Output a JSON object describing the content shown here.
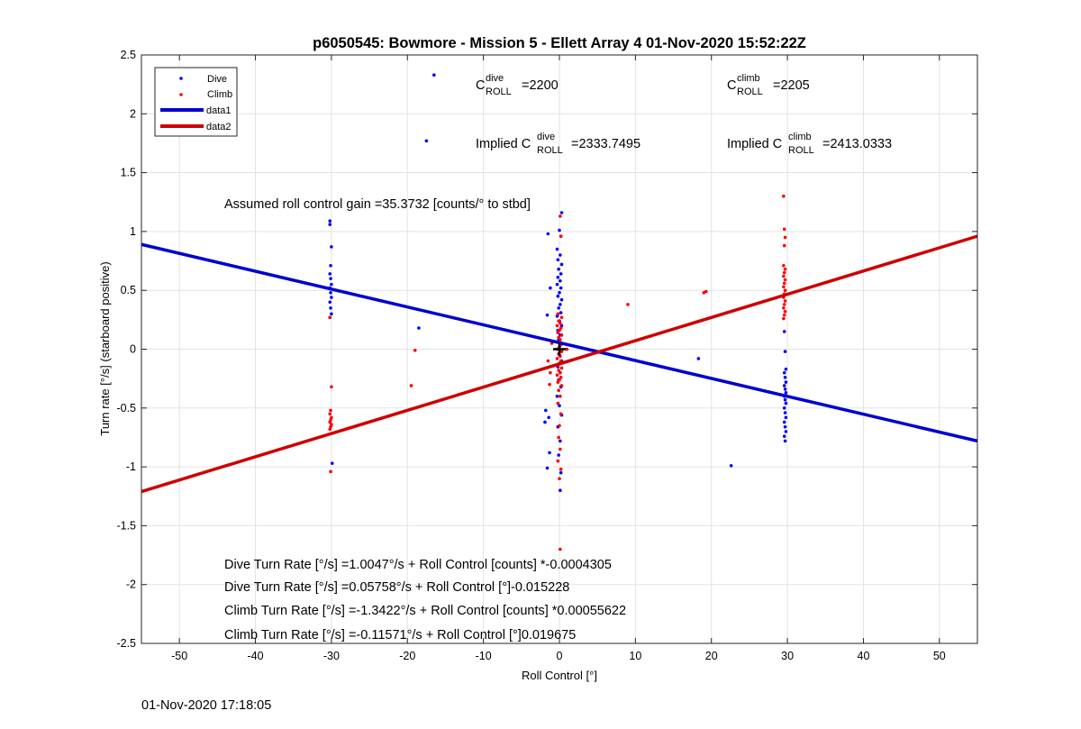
{
  "chart_data": {
    "type": "scatter",
    "title": "p6050545: Bowmore - Mission 5 - Ellett Array 4 01-Nov-2020 15:52:22Z",
    "xlabel": "Roll Control [°]",
    "ylabel": "Turn rate [°/s] (starboard positive)",
    "xlim": [
      -55,
      55
    ],
    "ylim": [
      -2.5,
      2.5
    ],
    "xticks": [
      -50,
      -40,
      -30,
      -20,
      -10,
      0,
      10,
      20,
      30,
      40,
      50
    ],
    "yticks": [
      -2.5,
      -2,
      -1.5,
      -1,
      -0.5,
      0,
      0.5,
      1,
      1.5,
      2,
      2.5
    ],
    "grid": true,
    "legend_position": "top-left",
    "colors": {
      "dive": "#0000ff",
      "climb": "#ff0000",
      "data1": "#0000cd",
      "data2": "#cd0000",
      "marker": "#000000"
    },
    "series": [
      {
        "name": "Dive",
        "kind": "points",
        "points": [
          [
            -16.5,
            2.33
          ],
          [
            -17.5,
            1.77
          ],
          [
            -18.5,
            0.18
          ],
          [
            18.3,
            -0.08
          ],
          [
            22.6,
            -0.99
          ],
          [
            -30.2,
            1.09
          ],
          [
            -30.2,
            1.06
          ],
          [
            -30.0,
            0.87
          ],
          [
            -30.1,
            0.71
          ],
          [
            -30.2,
            0.64
          ],
          [
            -30.1,
            0.6
          ],
          [
            -30.0,
            0.55
          ],
          [
            -30.2,
            0.52
          ],
          [
            -30.1,
            0.48
          ],
          [
            -30.0,
            0.44
          ],
          [
            -30.2,
            0.4
          ],
          [
            -30.1,
            0.35
          ],
          [
            -30.0,
            0.3
          ],
          [
            -30.2,
            0.27
          ],
          [
            -29.9,
            -0.97
          ],
          [
            29.6,
            0.15
          ],
          [
            29.7,
            -0.02
          ],
          [
            29.8,
            -0.17
          ],
          [
            29.6,
            -0.2
          ],
          [
            29.7,
            -0.24
          ],
          [
            29.8,
            -0.28
          ],
          [
            29.6,
            -0.31
          ],
          [
            29.7,
            -0.34
          ],
          [
            29.8,
            -0.37
          ],
          [
            29.6,
            -0.4
          ],
          [
            29.7,
            -0.43
          ],
          [
            29.8,
            -0.46
          ],
          [
            29.6,
            -0.5
          ],
          [
            29.7,
            -0.54
          ],
          [
            29.8,
            -0.58
          ],
          [
            29.6,
            -0.62
          ],
          [
            29.7,
            -0.66
          ],
          [
            29.8,
            -0.7
          ],
          [
            29.6,
            -0.74
          ],
          [
            29.7,
            -0.78
          ],
          [
            -1.5,
            0.98
          ],
          [
            -1.2,
            0.52
          ],
          [
            -1.6,
            0.29
          ],
          [
            -1.8,
            -0.52
          ],
          [
            -1.4,
            -0.58
          ],
          [
            -1.9,
            -0.62
          ],
          [
            -1.3,
            -0.88
          ],
          [
            -1.6,
            -1.01
          ],
          [
            0.3,
            1.16
          ],
          [
            0.0,
            1.01
          ],
          [
            0.2,
            0.96
          ],
          [
            -0.3,
            0.85
          ],
          [
            0.1,
            0.8
          ],
          [
            -0.2,
            0.76
          ],
          [
            0.3,
            0.72
          ],
          [
            -0.1,
            0.68
          ],
          [
            0.2,
            0.64
          ],
          [
            -0.2,
            0.61
          ],
          [
            0.1,
            0.58
          ],
          [
            -0.3,
            0.55
          ],
          [
            0.2,
            0.52
          ],
          [
            0.0,
            0.48
          ],
          [
            -0.2,
            0.45
          ],
          [
            0.3,
            0.42
          ],
          [
            0.1,
            0.38
          ],
          [
            -0.1,
            0.35
          ],
          [
            0.2,
            0.31
          ],
          [
            -0.3,
            0.28
          ],
          [
            0.0,
            0.24
          ],
          [
            0.3,
            0.2
          ],
          [
            -0.2,
            0.16
          ],
          [
            0.1,
            0.12
          ],
          [
            -0.1,
            0.08
          ],
          [
            0.2,
            0.04
          ],
          [
            -0.3,
            0.0
          ],
          [
            0.0,
            -0.05
          ],
          [
            0.3,
            -0.1
          ],
          [
            -0.2,
            -0.15
          ],
          [
            0.1,
            -0.2
          ],
          [
            -0.1,
            -0.26
          ],
          [
            0.2,
            -0.32
          ],
          [
            -0.3,
            -0.4
          ],
          [
            0.0,
            -0.48
          ],
          [
            0.3,
            -0.56
          ],
          [
            -0.2,
            -0.66
          ],
          [
            0.1,
            -0.78
          ],
          [
            -0.1,
            -0.9
          ],
          [
            0.2,
            -1.05
          ],
          [
            0.1,
            -1.2
          ]
        ]
      },
      {
        "name": "Climb",
        "kind": "points",
        "points": [
          [
            -30.2,
            0.27
          ],
          [
            -30.0,
            -0.32
          ],
          [
            -30.1,
            -0.52
          ],
          [
            -30.2,
            -0.55
          ],
          [
            -30.0,
            -0.58
          ],
          [
            -30.1,
            -0.6
          ],
          [
            -30.2,
            -0.62
          ],
          [
            -30.0,
            -0.64
          ],
          [
            -30.1,
            -0.66
          ],
          [
            -30.2,
            -0.68
          ],
          [
            -30.1,
            -1.04
          ],
          [
            -19.0,
            -0.01
          ],
          [
            -19.5,
            -0.31
          ],
          [
            9.0,
            0.38
          ],
          [
            19.0,
            0.48
          ],
          [
            19.3,
            0.49
          ],
          [
            29.5,
            1.3
          ],
          [
            29.6,
            1.02
          ],
          [
            29.7,
            0.95
          ],
          [
            29.6,
            0.88
          ],
          [
            29.5,
            0.71
          ],
          [
            29.7,
            0.68
          ],
          [
            29.6,
            0.65
          ],
          [
            29.5,
            0.62
          ],
          [
            29.7,
            0.59
          ],
          [
            29.6,
            0.56
          ],
          [
            29.5,
            0.53
          ],
          [
            29.7,
            0.5
          ],
          [
            29.6,
            0.47
          ],
          [
            29.5,
            0.44
          ],
          [
            29.7,
            0.41
          ],
          [
            29.6,
            0.38
          ],
          [
            29.5,
            0.35
          ],
          [
            29.7,
            0.32
          ],
          [
            29.6,
            0.29
          ],
          [
            29.5,
            0.26
          ],
          [
            0.1,
            1.13
          ],
          [
            0.2,
            0.96
          ],
          [
            -0.2,
            0.3
          ],
          [
            0.3,
            0.27
          ],
          [
            -0.1,
            0.24
          ],
          [
            0.1,
            0.22
          ],
          [
            -0.3,
            0.2
          ],
          [
            0.2,
            0.18
          ],
          [
            0.0,
            0.16
          ],
          [
            -0.2,
            0.14
          ],
          [
            0.3,
            0.12
          ],
          [
            -0.1,
            0.1
          ],
          [
            0.1,
            0.08
          ],
          [
            -0.3,
            0.06
          ],
          [
            0.2,
            0.04
          ],
          [
            0.0,
            0.02
          ],
          [
            -0.2,
            0.0
          ],
          [
            0.3,
            -0.02
          ],
          [
            -0.1,
            -0.04
          ],
          [
            0.1,
            -0.06
          ],
          [
            -0.3,
            -0.08
          ],
          [
            0.2,
            -0.1
          ],
          [
            0.0,
            -0.12
          ],
          [
            -0.2,
            -0.14
          ],
          [
            0.3,
            -0.16
          ],
          [
            -0.1,
            -0.18
          ],
          [
            0.1,
            -0.2
          ],
          [
            -0.3,
            -0.22
          ],
          [
            0.2,
            -0.24
          ],
          [
            0.0,
            -0.26
          ],
          [
            -0.2,
            -0.28
          ],
          [
            0.3,
            -0.31
          ],
          [
            -0.1,
            -0.35
          ],
          [
            0.1,
            -0.4
          ],
          [
            -0.2,
            -0.46
          ],
          [
            0.2,
            -0.55
          ],
          [
            0.0,
            -0.65
          ],
          [
            -0.1,
            -0.75
          ],
          [
            0.1,
            -0.85
          ],
          [
            -0.2,
            -0.95
          ],
          [
            0.2,
            -1.02
          ],
          [
            0.0,
            -1.1
          ],
          [
            0.1,
            -1.7
          ],
          [
            -1.2,
            -0.2
          ],
          [
            -1.5,
            -0.1
          ],
          [
            -1.0,
            0.05
          ],
          [
            -1.3,
            -0.3
          ],
          [
            1.0,
            0.0
          ]
        ]
      },
      {
        "name": "data1",
        "kind": "line",
        "x": [
          -55,
          55
        ],
        "y": [
          0.89,
          -0.78
        ]
      },
      {
        "name": "data2",
        "kind": "line",
        "x": [
          -55,
          55
        ],
        "y": [
          -1.21,
          0.96
        ]
      }
    ],
    "center_marker": [
      0,
      0
    ],
    "annotations": {
      "c_dive_base": "C",
      "c_dive_sup": "dive",
      "c_dive_sub": "ROLL",
      "c_dive_val": "=2200",
      "c_climb_base": "C",
      "c_climb_sup": "climb",
      "c_climb_sub": "ROLL",
      "c_climb_val": "=2205",
      "implied_prefix": "Implied C",
      "implied_dive_sup": "dive",
      "implied_dive_sub": "ROLL",
      "implied_dive_val": "=2333.7495",
      "implied_climb_sup": "climb",
      "implied_climb_sub": "ROLL",
      "implied_climb_val": "=2413.0333",
      "gain": "Assumed roll control gain =35.3732 [counts/° to stbd]",
      "eq1": "Dive Turn Rate [°/s] =1.0047°/s + Roll Control [counts] *-0.0004305",
      "eq2": "Dive Turn Rate [°/s] =0.05758°/s + Roll Control [°]-0.015228",
      "eq3": "Climb Turn Rate [°/s] =-1.3422°/s + Roll Control [counts] *0.00055622",
      "eq4": "Climb Turn Rate [°/s] =-0.11571°/s + Roll Control [°]0.019675"
    }
  },
  "footer": {
    "timestamp": "01-Nov-2020 17:18:05"
  }
}
